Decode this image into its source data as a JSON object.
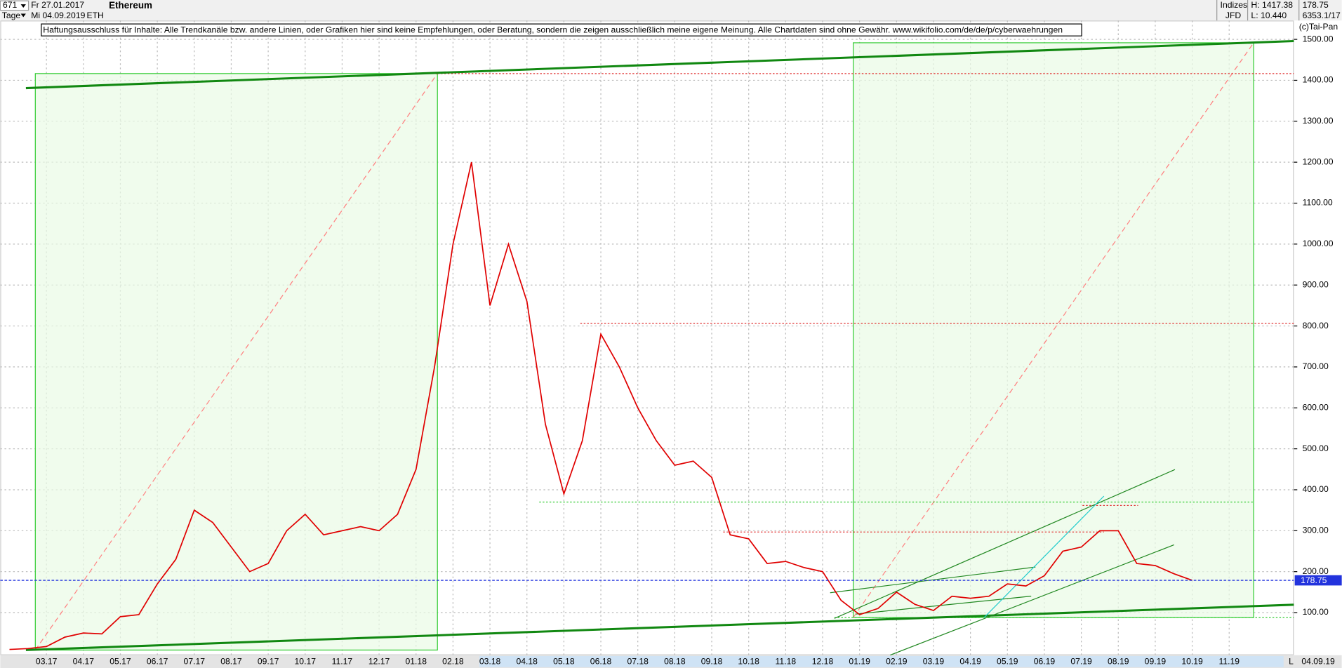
{
  "header": {
    "count": "671",
    "date_from": "Fr 27.01.2017",
    "period": "Tage",
    "date_to": "Mi 04.09.2019",
    "title": "Ethereum",
    "symbol": "ETH",
    "group": "Indizes",
    "broker": "JFD",
    "high": "H: 1417.38",
    "low": "L: 10.440",
    "code": "6353.1/17",
    "copyright": "(c)Tai-Pan",
    "disclaimer": "Haftungsausschluss für Inhalte: Alle Trendkanäle bzw. andere Linien, oder Grafiken hier sind keine Empfehlungen, oder Beratung, sondern die zeigen ausschließlich meine eigene Meinung. Alle Chartdaten sind ohne Gewähr.  www.wikifolio.com/de/de/p/cyberwaehrungen",
    "end_date": "04.09.19",
    "scale_mode": "L"
  },
  "chart_data": {
    "type": "line",
    "categories": [
      null,
      null,
      "03.17",
      null,
      "04.17",
      null,
      "05.17",
      null,
      "06.17",
      null,
      "07.17",
      null,
      "08.17",
      null,
      "09.17",
      null,
      "10.17",
      null,
      "11.17",
      null,
      "12.17",
      null,
      "01.18",
      null,
      "02.18",
      null,
      "03.18",
      null,
      "04.18",
      null,
      "05.18",
      null,
      "06.18",
      null,
      "07.18",
      null,
      "08.18",
      null,
      "09.18",
      null,
      "10.18",
      null,
      "11.18",
      null,
      "12.18",
      null,
      "01.19",
      null,
      "02.19",
      null,
      "03.19",
      null,
      "04.19",
      null,
      "05.19",
      null,
      "06.19",
      null,
      "07.19",
      null,
      "08.19",
      null,
      "09.19",
      null,
      "10.19",
      null,
      "11.19",
      null,
      null,
      null
    ],
    "series": [
      {
        "name": "ETH",
        "color": "#e00000",
        "values": [
          10,
          12,
          17,
          40,
          50,
          48,
          90,
          95,
          170,
          230,
          350,
          320,
          260,
          200,
          220,
          300,
          340,
          290,
          300,
          310,
          300,
          340,
          450,
          700,
          1000,
          1200,
          850,
          1000,
          860,
          560,
          390,
          520,
          780,
          700,
          600,
          520,
          460,
          470,
          430,
          290,
          280,
          220,
          225,
          210,
          200,
          130,
          95,
          110,
          150,
          120,
          105,
          140,
          135,
          140,
          170,
          165,
          190,
          250,
          260,
          300,
          300,
          220,
          215,
          195,
          178.75,
          null,
          null,
          null,
          null,
          null
        ]
      }
    ],
    "last_price": 178.75,
    "ylim": [
      -4,
      1546
    ],
    "yticks": [
      {
        "value": 100,
        "label": "100.00"
      },
      {
        "value": 200,
        "label": "200.00"
      },
      {
        "value": 300,
        "label": "300.00"
      },
      {
        "value": 400,
        "label": "400.00"
      },
      {
        "value": 500,
        "label": "500.00"
      },
      {
        "value": 600,
        "label": "600.00"
      },
      {
        "value": 700,
        "label": "700.00"
      },
      {
        "value": 800,
        "label": "800.00"
      },
      {
        "value": 900,
        "label": "900.00"
      },
      {
        "value": 1000,
        "label": "1000.00"
      },
      {
        "value": 1100,
        "label": "1100.00"
      },
      {
        "value": 1200,
        "label": "1200.00"
      },
      {
        "value": 1300,
        "label": "1300.00"
      },
      {
        "value": 1400,
        "label": "1400.00"
      },
      {
        "value": 1500,
        "label": "1500.00"
      }
    ],
    "grid": true
  }
}
